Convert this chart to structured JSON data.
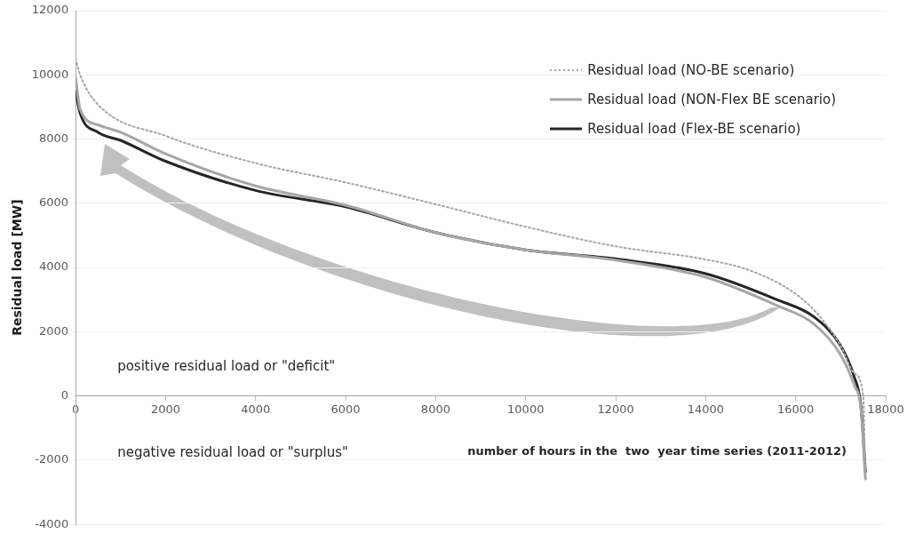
{
  "chart_data": {
    "type": "line",
    "xlabel": "number of hours in the  two  year time series (2011-2012)",
    "ylabel": "Residual load [MW]",
    "xlim": [
      0,
      18000
    ],
    "xticks": [
      0,
      2000,
      4000,
      6000,
      8000,
      10000,
      12000,
      14000,
      16000,
      18000
    ],
    "ylim": [
      -4000,
      12000
    ],
    "yticks": [
      -4000,
      -2000,
      0,
      2000,
      4000,
      6000,
      8000,
      10000,
      12000
    ],
    "grid": "y",
    "legend": "top right",
    "marker": "none",
    "annotations": [
      "positive residual load or \"deficit\"",
      "negative residual load or \"surplus\""
    ],
    "series": [
      {
        "name": "Residual load (NO-BE scenario)",
        "color": "#a6a6a6",
        "line_style": "dotted",
        "x": [
          0,
          100,
          500,
          2000,
          4000,
          6000,
          8000,
          10000,
          12000,
          14000,
          15000,
          16000,
          16500,
          17000,
          17300,
          17500,
          17550
        ],
        "values": [
          10500,
          10000,
          9070,
          8100,
          7250,
          6650,
          5970,
          5270,
          4660,
          4250,
          3900,
          3180,
          2530,
          1560,
          710,
          0,
          -2600
        ]
      },
      {
        "name": "Residual load (NON-Flex BE scenario)",
        "color": "#a6a6a6",
        "line_style": "solid",
        "x": [
          0,
          100,
          500,
          1000,
          2000,
          4000,
          6000,
          8000,
          10000,
          12000,
          14000,
          15600,
          16400,
          17000,
          17300,
          17450,
          17550
        ],
        "values": [
          9900,
          8930,
          8440,
          8210,
          7540,
          6540,
          5940,
          5090,
          4550,
          4230,
          3700,
          2810,
          2250,
          1280,
          340,
          -400,
          -2590
        ]
      },
      {
        "name": "Residual load (Flex-BE scenario)",
        "color": "#262626",
        "line_style": "solid",
        "x": [
          0,
          100,
          500,
          1000,
          2000,
          4000,
          6000,
          8000,
          10000,
          12000,
          14000,
          15600,
          16400,
          17000,
          17300,
          17450,
          17550
        ],
        "values": [
          9500,
          8800,
          8210,
          7960,
          7310,
          6400,
          5890,
          5090,
          4550,
          4270,
          3810,
          2990,
          2470,
          1560,
          600,
          -310,
          -2360
        ]
      }
    ]
  }
}
